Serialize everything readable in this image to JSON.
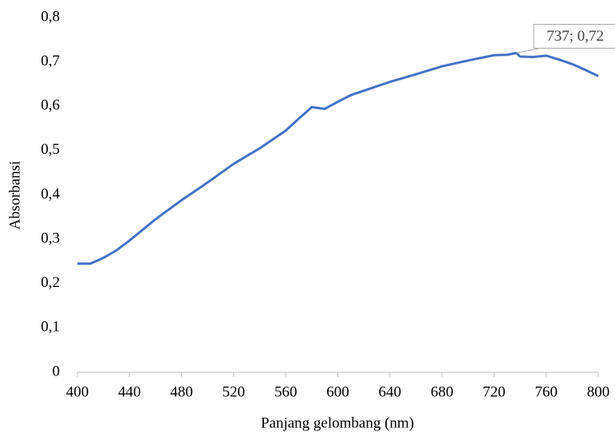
{
  "chart_data": {
    "type": "line",
    "x_label": "Panjang gelombang (nm)",
    "y_label": "Absorbansi",
    "series": [
      {
        "name": "Absorbansi",
        "color": "#4472c4",
        "x": [
          400,
          410,
          420,
          430,
          440,
          460,
          480,
          500,
          520,
          540,
          560,
          570,
          580,
          590,
          600,
          610,
          620,
          640,
          660,
          680,
          700,
          720,
          730,
          737,
          740,
          750,
          760,
          770,
          780,
          790,
          800
        ],
        "values": [
          0.245,
          0.245,
          0.258,
          0.275,
          0.297,
          0.345,
          0.388,
          0.428,
          0.47,
          0.505,
          0.545,
          0.572,
          0.598,
          0.594,
          0.61,
          0.625,
          0.635,
          0.655,
          0.672,
          0.69,
          0.703,
          0.715,
          0.716,
          0.72,
          0.712,
          0.711,
          0.714,
          0.705,
          0.695,
          0.682,
          0.668
        ]
      }
    ],
    "xlim": [
      400,
      800
    ],
    "xticks": [
      400,
      440,
      480,
      520,
      560,
      600,
      640,
      680,
      720,
      760,
      800
    ],
    "ylim": [
      0,
      0.8
    ],
    "yticks": [
      0,
      {
        "value": 0.1,
        "label": "0,1"
      },
      {
        "value": 0.2,
        "label": "0,2"
      },
      {
        "value": 0.3,
        "label": "0,3"
      },
      {
        "value": 0.4,
        "label": "0,4"
      },
      {
        "value": 0.5,
        "label": "0,5"
      },
      {
        "value": 0.6,
        "label": "0,6"
      },
      {
        "value": 0.7,
        "label": "0,7"
      },
      {
        "value": 0.8,
        "label": "0,8"
      }
    ],
    "annotations": [
      {
        "text": "737; 0,72",
        "x": 737,
        "y": 0.72
      }
    ]
  }
}
